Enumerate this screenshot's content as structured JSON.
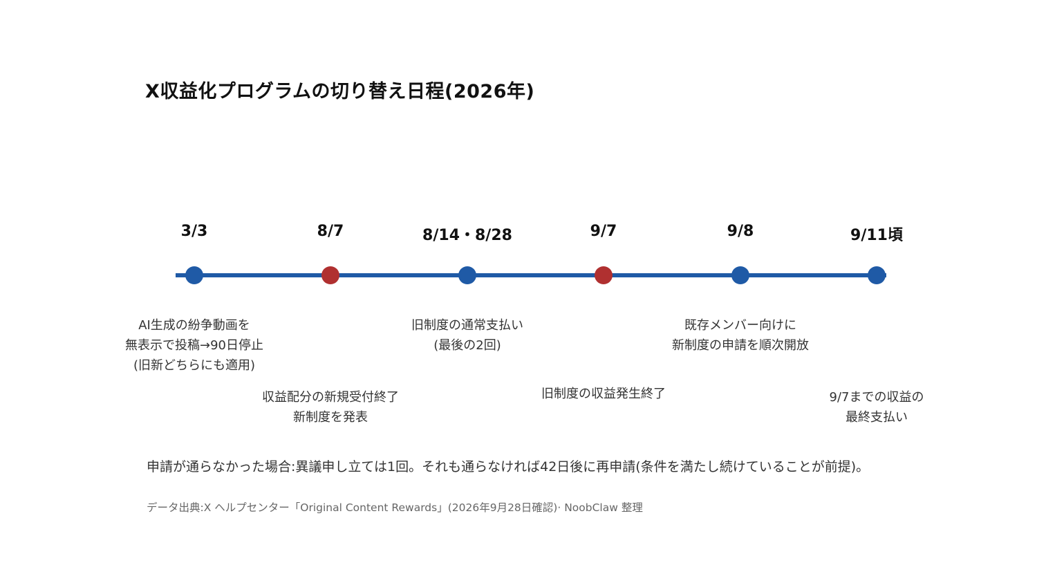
{
  "title": "X収益化プログラムの切り替え日程(2026年)",
  "colors": {
    "line": "#1f5aa6",
    "blue_dot": "#1f5aa6",
    "red_dot": "#b03030"
  },
  "events": [
    {
      "date": "3/3",
      "dot_color": "#1f5aa6",
      "lines": [
        "AI生成の紛争動画を",
        "無表示で投稿→90日停止",
        "(旧新どちらにも適用)"
      ]
    },
    {
      "date": "8/7",
      "dot_color": "#b03030",
      "lines": [
        "収益配分の新規受付終了",
        "新制度を発表"
      ]
    },
    {
      "date": "8/14・8/28",
      "dot_color": "#1f5aa6",
      "lines": [
        "旧制度の通常支払い",
        "(最後の2回)"
      ]
    },
    {
      "date": "9/7",
      "dot_color": "#b03030",
      "lines": [
        "旧制度の収益発生終了"
      ]
    },
    {
      "date": "9/8",
      "dot_color": "#1f5aa6",
      "lines": [
        "既存メンバー向けに",
        "新制度の申請を順次開放"
      ]
    },
    {
      "date": "9/11頃",
      "dot_color": "#1f5aa6",
      "lines": [
        "9/7までの収益の",
        "最終支払い"
      ]
    }
  ],
  "note": "申請が通らなかった場合:異議申し立ては1回。それも通らなければ42日後に再申請(条件を満たし続けていることが前提)。",
  "source": "データ出典:X ヘルプセンター「Original Content Rewards」(2026年9月28日確認)· NoobClaw 整理"
}
